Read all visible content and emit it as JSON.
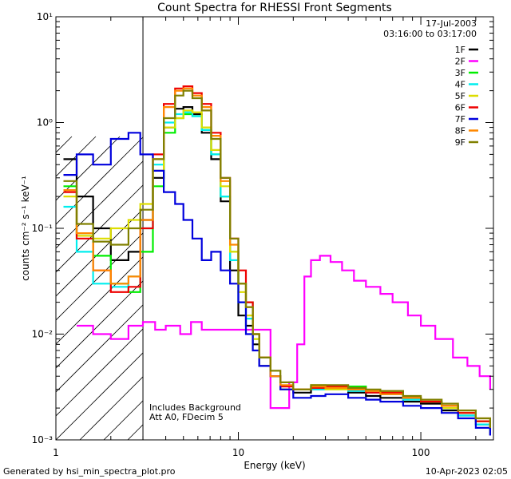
{
  "chart_data": {
    "type": "line",
    "title": "Count Spectra for RHESSI Front Segments",
    "xlabel": "Energy (keV)",
    "ylabel": "counts cm⁻² s⁻¹ keV⁻¹",
    "xscale": "log",
    "yscale": "log",
    "xlim": [
      1,
      250
    ],
    "ylim": [
      0.001,
      10
    ],
    "x_ticks": [
      {
        "value": 1,
        "label": "1"
      },
      {
        "value": 10,
        "label": "10"
      },
      {
        "value": 100,
        "label": "100"
      }
    ],
    "y_ticks": [
      {
        "value": 0.001,
        "label": "10⁻³"
      },
      {
        "value": 0.01,
        "label": "10⁻²"
      },
      {
        "value": 0.1,
        "label": "10⁻¹"
      },
      {
        "value": 1,
        "label": "10⁰"
      },
      {
        "value": 10,
        "label": "10¹"
      }
    ],
    "shaded_region": {
      "xmin": 1,
      "xmax": 3,
      "style": "diagonal hatch"
    },
    "legend": {
      "position": "top-right",
      "date": "17-Jul-2003",
      "time_range": "03:16:00 to 03:17:00"
    },
    "annotations": [
      "Includes Background",
      "Att A0, FDecim 5"
    ],
    "footer_left": "Generated by hsi_min_spectra_plot.pro",
    "footer_right": "10-Apr-2023 02:05",
    "series": [
      {
        "name": "1F",
        "color": "#000000",
        "points": [
          [
            1.1,
            0.45
          ],
          [
            1.3,
            0.2
          ],
          [
            1.6,
            0.1
          ],
          [
            2.0,
            0.05
          ],
          [
            2.5,
            0.06
          ],
          [
            2.9,
            0.12
          ],
          [
            3.4,
            0.3
          ],
          [
            3.9,
            0.9
          ],
          [
            4.5,
            1.35
          ],
          [
            5.0,
            1.4
          ],
          [
            5.6,
            1.2
          ],
          [
            6.3,
            0.8
          ],
          [
            7.1,
            0.45
          ],
          [
            8.0,
            0.18
          ],
          [
            9.0,
            0.04
          ],
          [
            10.0,
            0.015
          ],
          [
            11,
            0.012
          ],
          [
            12,
            0.008
          ],
          [
            13,
            0.005
          ],
          [
            15,
            0.004
          ],
          [
            17,
            0.003
          ],
          [
            20,
            0.0028
          ],
          [
            25,
            0.003
          ],
          [
            30,
            0.0032
          ],
          [
            40,
            0.0028
          ],
          [
            50,
            0.0026
          ],
          [
            60,
            0.0025
          ],
          [
            80,
            0.0023
          ],
          [
            100,
            0.0022
          ],
          [
            130,
            0.0019
          ],
          [
            160,
            0.0017
          ],
          [
            200,
            0.0014
          ],
          [
            240,
            0.0011
          ]
        ]
      },
      {
        "name": "2F",
        "color": "#ff00ff",
        "points": [
          [
            1.3,
            0.012
          ],
          [
            1.6,
            0.01
          ],
          [
            2.0,
            0.009
          ],
          [
            2.5,
            0.012
          ],
          [
            3.0,
            0.013
          ],
          [
            3.5,
            0.011
          ],
          [
            4.0,
            0.012
          ],
          [
            4.8,
            0.01
          ],
          [
            5.5,
            0.013
          ],
          [
            6.3,
            0.011
          ],
          [
            15,
            0.002
          ],
          [
            17,
            0.002
          ],
          [
            19,
            0.0035
          ],
          [
            21,
            0.008
          ],
          [
            23,
            0.035
          ],
          [
            25,
            0.05
          ],
          [
            28,
            0.055
          ],
          [
            32,
            0.048
          ],
          [
            37,
            0.04
          ],
          [
            43,
            0.032
          ],
          [
            50,
            0.028
          ],
          [
            60,
            0.024
          ],
          [
            70,
            0.02
          ],
          [
            85,
            0.015
          ],
          [
            100,
            0.012
          ],
          [
            120,
            0.009
          ],
          [
            150,
            0.006
          ],
          [
            180,
            0.005
          ],
          [
            210,
            0.004
          ],
          [
            240,
            0.003
          ]
        ]
      },
      {
        "name": "3F",
        "color": "#00ee00",
        "points": [
          [
            1.1,
            0.25
          ],
          [
            1.3,
            0.09
          ],
          [
            1.6,
            0.055
          ],
          [
            2.0,
            0.03
          ],
          [
            2.5,
            0.025
          ],
          [
            2.9,
            0.06
          ],
          [
            3.4,
            0.25
          ],
          [
            3.9,
            0.8
          ],
          [
            4.5,
            1.1
          ],
          [
            5.0,
            1.2
          ],
          [
            5.6,
            1.15
          ],
          [
            6.3,
            0.85
          ],
          [
            7.1,
            0.5
          ],
          [
            8.0,
            0.2
          ],
          [
            9.0,
            0.06
          ],
          [
            10.0,
            0.03
          ],
          [
            11,
            0.02
          ],
          [
            12,
            0.01
          ],
          [
            13,
            0.006
          ],
          [
            15,
            0.004
          ],
          [
            17,
            0.003
          ],
          [
            20,
            0.003
          ],
          [
            25,
            0.0032
          ],
          [
            30,
            0.003
          ],
          [
            40,
            0.0032
          ],
          [
            50,
            0.0029
          ],
          [
            60,
            0.0028
          ],
          [
            80,
            0.0025
          ],
          [
            100,
            0.0023
          ],
          [
            130,
            0.0021
          ],
          [
            160,
            0.0018
          ],
          [
            200,
            0.0015
          ],
          [
            240,
            0.0012
          ]
        ]
      },
      {
        "name": "4F",
        "color": "#00eeee",
        "points": [
          [
            1.1,
            0.16
          ],
          [
            1.3,
            0.06
          ],
          [
            1.6,
            0.03
          ],
          [
            2.0,
            0.028
          ],
          [
            2.5,
            0.035
          ],
          [
            2.9,
            0.1
          ],
          [
            3.4,
            0.4
          ],
          [
            3.9,
            1.0
          ],
          [
            4.5,
            1.2
          ],
          [
            5.0,
            1.25
          ],
          [
            5.6,
            1.15
          ],
          [
            6.3,
            0.85
          ],
          [
            7.1,
            0.5
          ],
          [
            8.0,
            0.2
          ],
          [
            9.0,
            0.05
          ],
          [
            10.0,
            0.02
          ],
          [
            11,
            0.014
          ],
          [
            12,
            0.009
          ],
          [
            13,
            0.006
          ],
          [
            15,
            0.004
          ],
          [
            17,
            0.003
          ],
          [
            20,
            0.003
          ],
          [
            25,
            0.003
          ],
          [
            30,
            0.0031
          ],
          [
            40,
            0.0029
          ],
          [
            50,
            0.0028
          ],
          [
            60,
            0.0027
          ],
          [
            80,
            0.0024
          ],
          [
            100,
            0.0023
          ],
          [
            130,
            0.002
          ],
          [
            160,
            0.0017
          ],
          [
            200,
            0.0014
          ],
          [
            240,
            0.0012
          ]
        ]
      },
      {
        "name": "5F",
        "color": "#dddd00",
        "points": [
          [
            1.1,
            0.2
          ],
          [
            1.3,
            0.085
          ],
          [
            1.6,
            0.08
          ],
          [
            2.0,
            0.1
          ],
          [
            2.5,
            0.12
          ],
          [
            2.9,
            0.17
          ],
          [
            3.4,
            0.35
          ],
          [
            3.9,
            0.9
          ],
          [
            4.5,
            1.1
          ],
          [
            5.0,
            1.3
          ],
          [
            5.6,
            1.25
          ],
          [
            6.3,
            0.9
          ],
          [
            7.1,
            0.55
          ],
          [
            8.0,
            0.25
          ],
          [
            9.0,
            0.06
          ],
          [
            10.0,
            0.025
          ],
          [
            11,
            0.015
          ],
          [
            12,
            0.009
          ],
          [
            13,
            0.006
          ],
          [
            15,
            0.004
          ],
          [
            17,
            0.003
          ],
          [
            20,
            0.003
          ],
          [
            25,
            0.0033
          ],
          [
            30,
            0.003
          ],
          [
            40,
            0.003
          ],
          [
            50,
            0.0029
          ],
          [
            60,
            0.0028
          ],
          [
            80,
            0.0025
          ],
          [
            100,
            0.0023
          ],
          [
            130,
            0.002
          ],
          [
            160,
            0.0018
          ],
          [
            200,
            0.0015
          ],
          [
            240,
            0.0012
          ]
        ]
      },
      {
        "name": "6F",
        "color": "#ee0000",
        "points": [
          [
            1.1,
            0.22
          ],
          [
            1.3,
            0.08
          ],
          [
            1.6,
            0.04
          ],
          [
            2.0,
            0.025
          ],
          [
            2.5,
            0.028
          ],
          [
            2.9,
            0.1
          ],
          [
            3.4,
            0.5
          ],
          [
            3.9,
            1.5
          ],
          [
            4.5,
            2.1
          ],
          [
            5.0,
            2.2
          ],
          [
            5.6,
            1.9
          ],
          [
            6.3,
            1.5
          ],
          [
            7.1,
            0.8
          ],
          [
            8.0,
            0.3
          ],
          [
            9.0,
            0.08
          ],
          [
            10.0,
            0.04
          ],
          [
            11,
            0.02
          ],
          [
            12,
            0.01
          ],
          [
            13,
            0.006
          ],
          [
            15,
            0.004
          ],
          [
            17,
            0.0032
          ],
          [
            20,
            0.003
          ],
          [
            25,
            0.0031
          ],
          [
            30,
            0.0032
          ],
          [
            40,
            0.003
          ],
          [
            50,
            0.0028
          ],
          [
            60,
            0.0028
          ],
          [
            80,
            0.0025
          ],
          [
            100,
            0.0023
          ],
          [
            130,
            0.0021
          ],
          [
            160,
            0.0018
          ],
          [
            200,
            0.0015
          ],
          [
            240,
            0.0013
          ]
        ]
      },
      {
        "name": "7F",
        "color": "#0000dd",
        "points": [
          [
            1.1,
            0.32
          ],
          [
            1.3,
            0.5
          ],
          [
            1.6,
            0.4
          ],
          [
            2.0,
            0.7
          ],
          [
            2.5,
            0.8
          ],
          [
            2.9,
            0.5
          ],
          [
            3.4,
            0.35
          ],
          [
            3.9,
            0.22
          ],
          [
            4.5,
            0.17
          ],
          [
            5.0,
            0.12
          ],
          [
            5.6,
            0.08
          ],
          [
            6.3,
            0.05
          ],
          [
            7.1,
            0.06
          ],
          [
            8.0,
            0.04
          ],
          [
            9.0,
            0.03
          ],
          [
            10.0,
            0.02
          ],
          [
            11,
            0.01
          ],
          [
            12,
            0.007
          ],
          [
            13,
            0.005
          ],
          [
            15,
            0.004
          ],
          [
            17,
            0.003
          ],
          [
            20,
            0.0025
          ],
          [
            25,
            0.0026
          ],
          [
            30,
            0.0027
          ],
          [
            40,
            0.0025
          ],
          [
            50,
            0.0024
          ],
          [
            60,
            0.0023
          ],
          [
            80,
            0.0021
          ],
          [
            100,
            0.002
          ],
          [
            130,
            0.0018
          ],
          [
            160,
            0.0016
          ],
          [
            200,
            0.0013
          ],
          [
            240,
            0.0011
          ]
        ]
      },
      {
        "name": "8F",
        "color": "#ff8800",
        "points": [
          [
            1.1,
            0.23
          ],
          [
            1.3,
            0.09
          ],
          [
            1.6,
            0.04
          ],
          [
            2.0,
            0.03
          ],
          [
            2.5,
            0.035
          ],
          [
            2.9,
            0.12
          ],
          [
            3.4,
            0.45
          ],
          [
            3.9,
            1.4
          ],
          [
            4.5,
            2.0
          ],
          [
            5.0,
            2.1
          ],
          [
            5.6,
            1.8
          ],
          [
            6.3,
            1.4
          ],
          [
            7.1,
            0.75
          ],
          [
            8.0,
            0.28
          ],
          [
            9.0,
            0.07
          ],
          [
            10.0,
            0.03
          ],
          [
            11,
            0.018
          ],
          [
            12,
            0.01
          ],
          [
            13,
            0.006
          ],
          [
            15,
            0.004
          ],
          [
            17,
            0.0033
          ],
          [
            20,
            0.003
          ],
          [
            25,
            0.0032
          ],
          [
            30,
            0.0031
          ],
          [
            40,
            0.003
          ],
          [
            50,
            0.0029
          ],
          [
            60,
            0.0027
          ],
          [
            80,
            0.0025
          ],
          [
            100,
            0.0024
          ],
          [
            130,
            0.0021
          ],
          [
            160,
            0.0019
          ],
          [
            200,
            0.0016
          ],
          [
            240,
            0.0013
          ]
        ]
      },
      {
        "name": "9F",
        "color": "#808000",
        "points": [
          [
            1.1,
            0.28
          ],
          [
            1.3,
            0.11
          ],
          [
            1.6,
            0.075
          ],
          [
            2.0,
            0.07
          ],
          [
            2.5,
            0.1
          ],
          [
            2.9,
            0.15
          ],
          [
            3.4,
            0.45
          ],
          [
            3.9,
            1.1
          ],
          [
            4.5,
            1.8
          ],
          [
            5.0,
            2.0
          ],
          [
            5.6,
            1.7
          ],
          [
            6.3,
            1.3
          ],
          [
            7.1,
            0.7
          ],
          [
            8.0,
            0.3
          ],
          [
            9.0,
            0.08
          ],
          [
            10.0,
            0.03
          ],
          [
            11,
            0.018
          ],
          [
            12,
            0.01
          ],
          [
            13,
            0.006
          ],
          [
            15,
            0.0045
          ],
          [
            17,
            0.0035
          ],
          [
            20,
            0.003
          ],
          [
            25,
            0.0033
          ],
          [
            30,
            0.0033
          ],
          [
            40,
            0.0031
          ],
          [
            50,
            0.003
          ],
          [
            60,
            0.0029
          ],
          [
            80,
            0.0026
          ],
          [
            100,
            0.0024
          ],
          [
            130,
            0.0022
          ],
          [
            160,
            0.0019
          ],
          [
            200,
            0.0016
          ],
          [
            240,
            0.0013
          ]
        ]
      }
    ]
  }
}
